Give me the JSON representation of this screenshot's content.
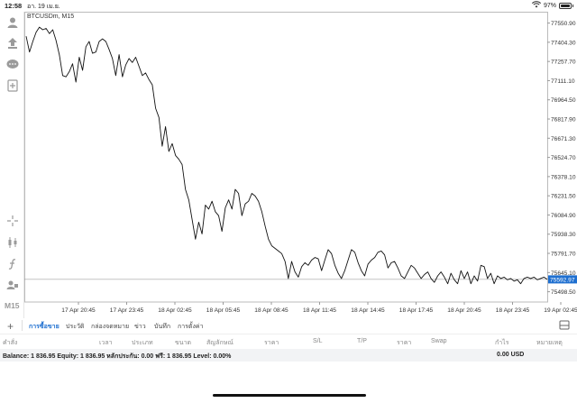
{
  "status_bar": {
    "time": "12:58",
    "date": "อา. 19 เม.ย.",
    "battery": "97%",
    "icons": [
      "wifi-icon",
      "battery-icon"
    ]
  },
  "left_toolbar": {
    "icons": [
      "account-icon",
      "trade-icon",
      "chat-icon",
      "new-doc-icon",
      "crosshair-icon",
      "candlestick-icon",
      "function-icon",
      "objects-icon"
    ],
    "timeframe": "M15"
  },
  "chart": {
    "symbol_label": "BTCUSDm, M15",
    "current_price_label": "75592.97",
    "accent_color": "#1e6fd0"
  },
  "chart_data": {
    "type": "line",
    "symbol": "BTCUSDm",
    "timeframe": "M15",
    "y_ticks": [
      "77550.90",
      "77404.30",
      "77257.70",
      "77111.10",
      "76964.50",
      "76817.90",
      "76671.30",
      "76524.70",
      "76378.10",
      "76231.50",
      "76084.90",
      "75938.30",
      "75791.70",
      "75645.10",
      "75498.50"
    ],
    "x_ticks": [
      "17 Apr 20:45",
      "17 Apr 23:45",
      "18 Apr 02:45",
      "18 Apr 05:45",
      "18 Apr 08:45",
      "18 Apr 11:45",
      "18 Apr 14:45",
      "18 Apr 17:45",
      "18 Apr 20:45",
      "18 Apr 23:45",
      "19 Apr 02:45",
      "19 Apr 05:45"
    ],
    "ylim": [
      75420,
      77610
    ],
    "current_price": 75592.97,
    "x": [
      0,
      1,
      2,
      3,
      4,
      5,
      6,
      7,
      8,
      9,
      10,
      11,
      12,
      13,
      14,
      15,
      16,
      17,
      18,
      19,
      20,
      21,
      22,
      23,
      24,
      25,
      26,
      27,
      28,
      29,
      30,
      31,
      32,
      33,
      34,
      35,
      36,
      37,
      38,
      39,
      40,
      41,
      42,
      43,
      44,
      45,
      46,
      47,
      48,
      49,
      50,
      51,
      52,
      53,
      54,
      55,
      56,
      57,
      58,
      59,
      60,
      61,
      62,
      63,
      64,
      65,
      66,
      67,
      68,
      69,
      70,
      71,
      72,
      73,
      74,
      75,
      76,
      77,
      78,
      79,
      80,
      81,
      82,
      83,
      84,
      85,
      86,
      87,
      88,
      89,
      90,
      91,
      92,
      93,
      94,
      95,
      96,
      97,
      98,
      99,
      100,
      101,
      102,
      103,
      104,
      105,
      106,
      107,
      108,
      109,
      110,
      111,
      112,
      113,
      114,
      115,
      116,
      117,
      118,
      119,
      120,
      121,
      122,
      123,
      124,
      125,
      126,
      127,
      128,
      129,
      130,
      131,
      132,
      133,
      134,
      135,
      136,
      137,
      138,
      139,
      140,
      141,
      142,
      143,
      144,
      145,
      146,
      147,
      148,
      149,
      150,
      151,
      152,
      153,
      154,
      155,
      156,
      157
    ],
    "values": [
      77450,
      77330,
      77410,
      77480,
      77520,
      77500,
      77510,
      77470,
      77500,
      77420,
      77310,
      77150,
      77140,
      77180,
      77240,
      77100,
      77290,
      77190,
      77370,
      77410,
      77320,
      77330,
      77410,
      77430,
      77410,
      77350,
      77280,
      77150,
      77310,
      77140,
      77230,
      77280,
      77250,
      77290,
      77220,
      77150,
      77170,
      77120,
      77080,
      76900,
      76830,
      76610,
      76760,
      76570,
      76630,
      76540,
      76510,
      76470,
      76280,
      76200,
      76050,
      75900,
      76030,
      75940,
      76160,
      76130,
      76190,
      76110,
      76080,
      75960,
      76140,
      76200,
      76130,
      76280,
      76250,
      76080,
      76170,
      76190,
      76250,
      76230,
      76190,
      76110,
      76000,
      75900,
      75850,
      75830,
      75810,
      75790,
      75730,
      75600,
      75730,
      75650,
      75610,
      75690,
      75720,
      75700,
      75740,
      75760,
      75750,
      75660,
      75740,
      75820,
      75790,
      75700,
      75640,
      75600,
      75660,
      75740,
      75820,
      75800,
      75720,
      75660,
      75620,
      75710,
      75740,
      75760,
      75800,
      75810,
      75780,
      75680,
      75720,
      75730,
      75680,
      75620,
      75600,
      75650,
      75700,
      75680,
      75640,
      75600,
      75630,
      75650,
      75600,
      75570,
      75620,
      75650,
      75610,
      75560,
      75640,
      75590,
      75560,
      75660,
      75600,
      75650,
      75560,
      75620,
      75580,
      75700,
      75690,
      75600,
      75640,
      75560,
      75620,
      75600,
      75610,
      75590,
      75600,
      75580,
      75590,
      75560,
      75600,
      75610,
      75600,
      75610,
      75590,
      75600,
      75610,
      75593
    ]
  },
  "bottom_tabs": {
    "items": [
      {
        "label": "การซื้อขาย",
        "active": true
      },
      {
        "label": "ประวัติ",
        "active": false
      },
      {
        "label": "กล่องจดหมาย",
        "active": false
      },
      {
        "label": "ข่าว",
        "active": false
      },
      {
        "label": "บันทึก",
        "active": false
      },
      {
        "label": "การตั้งค่า",
        "active": false
      }
    ]
  },
  "table_header": [
    "คำสั่ง",
    "เวลา",
    "ประเภท",
    "ขนาด",
    "สัญลักษณ์",
    "ราคา",
    "S/L",
    "T/P",
    "ราคา",
    "Swap",
    "กำไร",
    "หมายเหตุ"
  ],
  "balance_row": {
    "text": "Balance: 1 836.95 Equity: 1 836.95 หลักประกัน: 0.00 ฟรี: 1 836.95 Level: 0.00%",
    "amount": "0.00  USD"
  }
}
